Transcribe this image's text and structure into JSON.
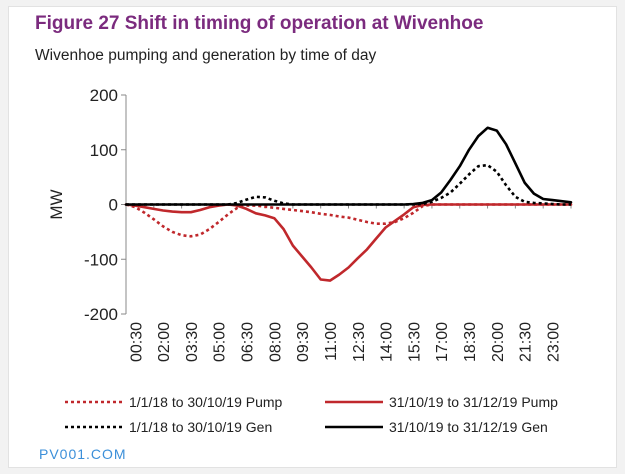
{
  "header": {
    "title": "Figure 27   Shift in timing of operation at Wivenhoe",
    "subtitle": "Wivenhoe pumping and generation by time of day"
  },
  "watermark": "PV001.COM",
  "colors": {
    "title": "#7b2b7e",
    "pump": "#c0282c",
    "gen": "#000000",
    "watermark": "#3b8fd9"
  },
  "chart_data": {
    "type": "line",
    "title": "",
    "xlabel": "",
    "ylabel": "MW",
    "ylim": [
      -200,
      200
    ],
    "yticks": [
      200,
      100,
      0,
      -100,
      -200
    ],
    "grid": false,
    "legend_position": "bottom",
    "x": [
      "00:00",
      "00:30",
      "01:00",
      "01:30",
      "02:00",
      "02:30",
      "03:00",
      "03:30",
      "04:00",
      "04:30",
      "05:00",
      "05:30",
      "06:00",
      "06:30",
      "07:00",
      "07:30",
      "08:00",
      "08:30",
      "09:00",
      "09:30",
      "10:00",
      "10:30",
      "11:00",
      "11:30",
      "12:00",
      "12:30",
      "13:00",
      "13:30",
      "14:00",
      "14:30",
      "15:00",
      "15:30",
      "16:00",
      "16:30",
      "17:00",
      "17:30",
      "18:00",
      "18:30",
      "19:00",
      "19:30",
      "20:00",
      "20:30",
      "21:00",
      "21:30",
      "22:00",
      "22:30",
      "23:00",
      "23:30",
      "24:00"
    ],
    "xtick_labels": [
      "00:30",
      "02:00",
      "03:30",
      "05:00",
      "06:30",
      "08:00",
      "09:30",
      "11:00",
      "12:30",
      "14:00",
      "15:30",
      "17:00",
      "18:30",
      "20:00",
      "21:30",
      "23:00"
    ],
    "series": [
      {
        "name": "1/1/18 to 30/10/19 Pump",
        "color": "#c0282c",
        "style": "dotted",
        "values": [
          0,
          -5,
          -15,
          -27,
          -40,
          -50,
          -56,
          -58,
          -55,
          -45,
          -32,
          -18,
          -6,
          -2,
          -2,
          -4,
          -6,
          -8,
          -10,
          -12,
          -14,
          -17,
          -19,
          -22,
          -24,
          -28,
          -32,
          -35,
          -35,
          -32,
          -25,
          -15,
          -3,
          0,
          0,
          0,
          0,
          0,
          0,
          0,
          0,
          0,
          0,
          0,
          0,
          0,
          0,
          0,
          0
        ]
      },
      {
        "name": "31/10/19 to 31/12/19 Pump",
        "color": "#c0282c",
        "style": "solid",
        "values": [
          0,
          -2,
          -5,
          -8,
          -11,
          -13,
          -14,
          -14,
          -10,
          -5,
          -2,
          0,
          -2,
          -8,
          -16,
          -20,
          -25,
          -45,
          -75,
          -95,
          -115,
          -137,
          -139,
          -128,
          -115,
          -98,
          -82,
          -62,
          -42,
          -30,
          -18,
          -5,
          -1,
          0,
          0,
          0,
          0,
          0,
          0,
          0,
          0,
          0,
          0,
          0,
          0,
          0,
          0,
          0,
          0
        ]
      },
      {
        "name": "1/1/18 to 30/10/19 Gen",
        "color": "#000000",
        "style": "dotted",
        "values": [
          0,
          0,
          0,
          0,
          0,
          0,
          0,
          0,
          0,
          0,
          0,
          0,
          3,
          9,
          14,
          13,
          7,
          2,
          0,
          0,
          0,
          0,
          0,
          0,
          0,
          0,
          0,
          0,
          0,
          0,
          0,
          0,
          1,
          5,
          12,
          22,
          38,
          55,
          70,
          72,
          60,
          35,
          14,
          5,
          3,
          2,
          1,
          0,
          0
        ]
      },
      {
        "name": "31/10/19 to 31/12/19 Gen",
        "color": "#000000",
        "style": "solid",
        "values": [
          0,
          0,
          0,
          0,
          0,
          0,
          0,
          0,
          0,
          0,
          0,
          0,
          0,
          0,
          0,
          0,
          0,
          0,
          0,
          0,
          0,
          0,
          0,
          0,
          0,
          0,
          0,
          0,
          0,
          0,
          0,
          1,
          3,
          8,
          22,
          45,
          70,
          100,
          125,
          140,
          135,
          110,
          75,
          40,
          20,
          10,
          8,
          6,
          4
        ]
      }
    ]
  }
}
